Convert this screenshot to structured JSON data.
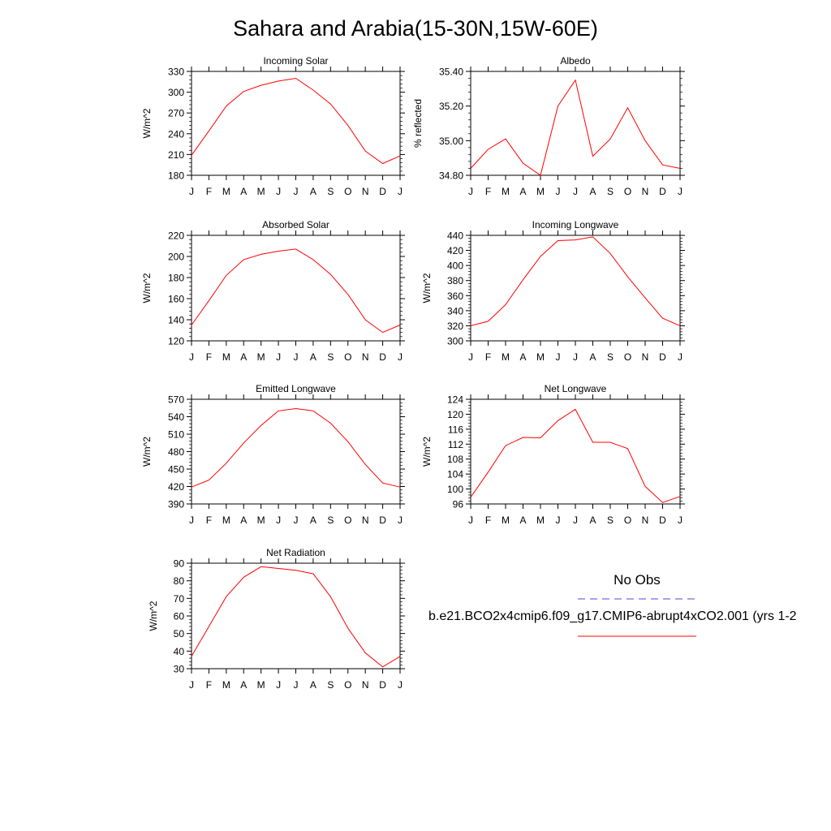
{
  "title": "Sahara and Arabia(15-30N,15W-60E)",
  "months": [
    "J",
    "F",
    "M",
    "A",
    "M",
    "J",
    "J",
    "A",
    "S",
    "O",
    "N",
    "D",
    "J"
  ],
  "colors": {
    "model": "#ff0000",
    "obs": "#4848e0",
    "axis": "#000000"
  },
  "legend": {
    "obs_label": "No Obs",
    "model_label": "b.e21.BCO2x4cmip6.f09_g17.CMIP6-abrupt4xCO2.001 (yrs 1-2"
  },
  "chart_data": [
    {
      "type": "line",
      "title": "Incoming Solar",
      "ylabel": "W/m^2",
      "ylim": [
        180,
        330
      ],
      "yticks": [
        180,
        210,
        240,
        270,
        300,
        330
      ],
      "yticklabels": [
        "180",
        "210",
        "240",
        "270",
        "300",
        "330"
      ],
      "x": [
        "J",
        "F",
        "M",
        "A",
        "M",
        "J",
        "J",
        "A",
        "S",
        "O",
        "N",
        "D",
        "J"
      ],
      "series": [
        {
          "values": [
            209,
            244,
            280,
            301,
            310,
            316,
            320,
            303,
            283,
            252,
            215,
            197,
            208
          ]
        }
      ]
    },
    {
      "type": "line",
      "title": "Albedo",
      "ylabel": "% reflected",
      "ylim": [
        34.8,
        35.4
      ],
      "yticks": [
        34.8,
        35.0,
        35.2,
        35.4
      ],
      "yticklabels": [
        "34.80",
        "35.00",
        "35.20",
        "35.40"
      ],
      "x": [
        "J",
        "F",
        "M",
        "A",
        "M",
        "J",
        "J",
        "A",
        "S",
        "O",
        "N",
        "D",
        "J"
      ],
      "series": [
        {
          "values": [
            34.84,
            34.95,
            35.01,
            34.87,
            34.8,
            35.2,
            35.35,
            34.91,
            35.01,
            35.19,
            35.0,
            34.86,
            34.84
          ]
        }
      ]
    },
    {
      "type": "line",
      "title": "Absorbed Solar",
      "ylabel": "W/m^2",
      "ylim": [
        120,
        220
      ],
      "yticks": [
        120,
        140,
        160,
        180,
        200,
        220
      ],
      "yticklabels": [
        "120",
        "140",
        "160",
        "180",
        "200",
        "220"
      ],
      "x": [
        "J",
        "F",
        "M",
        "A",
        "M",
        "J",
        "J",
        "A",
        "S",
        "O",
        "N",
        "D",
        "J"
      ],
      "series": [
        {
          "values": [
            135,
            158,
            182,
            197,
            202,
            205,
            207,
            197,
            183,
            164,
            140,
            128,
            135
          ]
        }
      ]
    },
    {
      "type": "line",
      "title": "Incoming Longwave",
      "ylabel": "W/m^2",
      "ylim": [
        300,
        440
      ],
      "yticks": [
        300,
        320,
        340,
        360,
        380,
        400,
        420,
        440
      ],
      "yticklabels": [
        "300",
        "320",
        "340",
        "360",
        "380",
        "400",
        "420",
        "440"
      ],
      "x": [
        "J",
        "F",
        "M",
        "A",
        "M",
        "J",
        "J",
        "A",
        "S",
        "O",
        "N",
        "D",
        "J"
      ],
      "series": [
        {
          "values": [
            320,
            326,
            348,
            381,
            412,
            433,
            434,
            438,
            416,
            385,
            357,
            330,
            320
          ]
        }
      ]
    },
    {
      "type": "line",
      "title": "Emitted Longwave",
      "ylabel": "W/m^2",
      "ylim": [
        390,
        570
      ],
      "yticks": [
        390,
        420,
        450,
        480,
        510,
        540,
        570
      ],
      "yticklabels": [
        "390",
        "420",
        "450",
        "480",
        "510",
        "540",
        "570"
      ],
      "x": [
        "J",
        "F",
        "M",
        "A",
        "M",
        "J",
        "J",
        "A",
        "S",
        "O",
        "N",
        "D",
        "J"
      ],
      "series": [
        {
          "values": [
            419,
            431,
            460,
            495,
            525,
            550,
            554,
            550,
            529,
            497,
            458,
            426,
            419
          ]
        }
      ]
    },
    {
      "type": "line",
      "title": "Net Longwave",
      "ylabel": "W/m^2",
      "ylim": [
        96,
        124
      ],
      "yticks": [
        96,
        100,
        104,
        108,
        112,
        116,
        120,
        124
      ],
      "yticklabels": [
        "96",
        "100",
        "104",
        "108",
        "112",
        "116",
        "120",
        "124"
      ],
      "x": [
        "J",
        "F",
        "M",
        "A",
        "M",
        "J",
        "J",
        "A",
        "S",
        "O",
        "N",
        "D",
        "J"
      ],
      "series": [
        {
          "values": [
            97.8,
            104.5,
            111.6,
            113.8,
            113.7,
            118.3,
            121.3,
            112.5,
            112.5,
            110.8,
            100.7,
            96.4,
            98.0
          ]
        }
      ]
    },
    {
      "type": "line",
      "title": "Net Radiation",
      "ylabel": "W/m^2",
      "ylim": [
        30,
        90
      ],
      "yticks": [
        30,
        40,
        50,
        60,
        70,
        80,
        90
      ],
      "yticklabels": [
        "30",
        "40",
        "50",
        "60",
        "70",
        "80",
        "90"
      ],
      "x": [
        "J",
        "F",
        "M",
        "A",
        "M",
        "J",
        "J",
        "A",
        "S",
        "O",
        "N",
        "D",
        "J"
      ],
      "series": [
        {
          "values": [
            37,
            54,
            71,
            82,
            88,
            87,
            86,
            84,
            71,
            53,
            39,
            31,
            37
          ]
        }
      ]
    }
  ]
}
